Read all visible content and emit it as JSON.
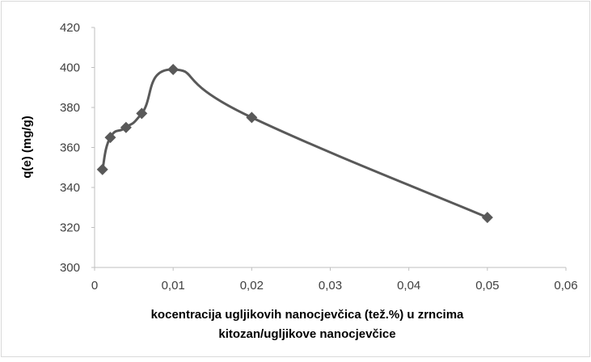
{
  "chart_data": {
    "type": "line",
    "smooth": true,
    "marker": "diamond",
    "series": [
      {
        "x": [
          0.001,
          0.002,
          0.004,
          0.006,
          0.01,
          0.02,
          0.05
        ],
        "y": [
          349,
          365,
          370,
          377,
          399,
          375,
          325
        ]
      }
    ],
    "xlim": [
      0,
      0.06
    ],
    "ylim": [
      300,
      420
    ],
    "xticks": [
      0,
      0.01,
      0.02,
      0.03,
      0.04,
      0.05,
      0.06
    ],
    "xtick_labels": [
      "0",
      "0,01",
      "0,02",
      "0,03",
      "0,04",
      "0,05",
      "0,06"
    ],
    "yticks": [
      300,
      320,
      340,
      360,
      380,
      400,
      420
    ],
    "ytick_labels": [
      "300",
      "320",
      "340",
      "360",
      "380",
      "400",
      "420"
    ],
    "ylabel": "q(e)  (mg/g)",
    "xlabel_lines": [
      "kocentracija ugljikovih nanocjevčica (tež.%) u zrncima",
      "kitozan/ugljikove nanocjevčice"
    ],
    "grid": false,
    "legend": "none",
    "colors": {
      "line": "#595959",
      "marker": "#595959",
      "axis": "#bfbfbf",
      "frame": "#d9d9d9"
    }
  }
}
